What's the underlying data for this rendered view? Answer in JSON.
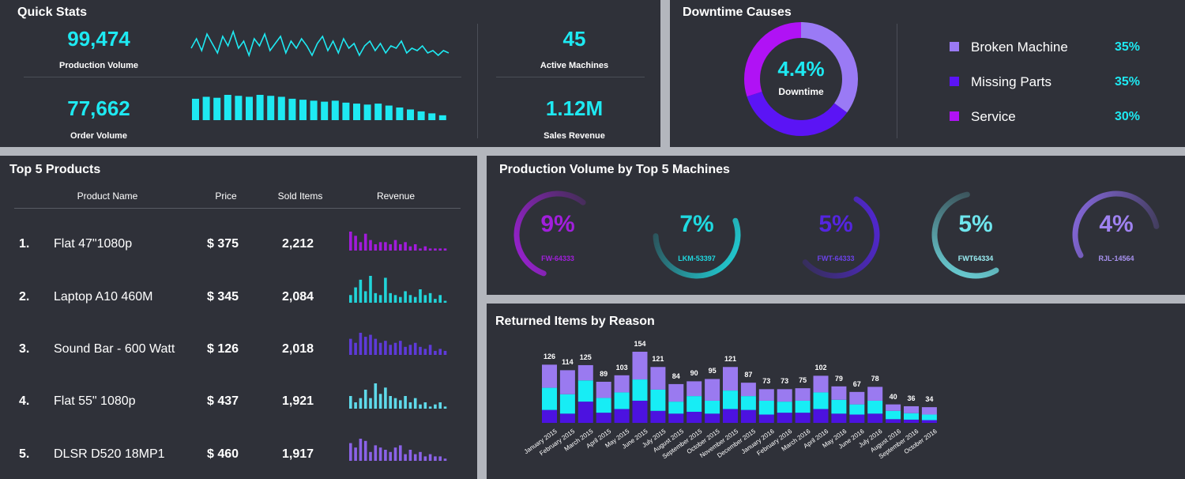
{
  "quick_stats": {
    "title": "Quick Stats",
    "production_volume": {
      "value": "99,474",
      "label": "Production Volume"
    },
    "order_volume": {
      "value": "77,662",
      "label": "Order Volume"
    },
    "active_machines": {
      "value": "45",
      "label": "Active Machines"
    },
    "sales_revenue": {
      "value": "1.12M",
      "label": "Sales Revenue"
    },
    "sparkline": [
      5,
      9,
      4,
      11,
      7,
      3,
      10,
      6,
      12,
      5,
      8,
      2,
      9,
      6,
      11,
      4,
      7,
      10,
      3,
      8,
      5,
      9,
      6,
      2,
      7,
      10,
      4,
      8,
      3,
      9,
      5,
      7,
      2,
      6,
      8,
      4,
      7,
      3,
      6,
      5,
      8,
      3,
      5,
      4,
      6,
      3,
      4,
      2,
      4,
      3
    ],
    "order_bars": [
      22,
      24,
      23,
      26,
      25,
      24,
      26,
      25,
      24,
      22,
      21,
      20,
      19,
      20,
      18,
      17,
      16,
      17,
      15,
      13,
      11,
      9,
      7,
      5
    ]
  },
  "downtime": {
    "title": "Downtime Causes",
    "center_value": "4.4%",
    "center_label": "Downtime",
    "items": [
      {
        "label": "Broken Machine",
        "pct": "35%",
        "value": 35,
        "color": "#9a7af5"
      },
      {
        "label": "Missing Parts",
        "pct": "35%",
        "value": 35,
        "color": "#5b14f5"
      },
      {
        "label": "Service",
        "pct": "30%",
        "value": 30,
        "color": "#b012f5"
      }
    ]
  },
  "products": {
    "title": "Top 5 Products",
    "headers": {
      "name": "Product Name",
      "price": "Price",
      "sold": "Sold Items",
      "revenue": "Revenue"
    },
    "rows": [
      {
        "rank": "1.",
        "name": "Flat 47\"1080p",
        "price": "$ 375",
        "sold": "2,212",
        "color": "#a21bdc",
        "spark": [
          9,
          7,
          4,
          8,
          5,
          3,
          4,
          4,
          3,
          5,
          3,
          4,
          2,
          3,
          1,
          2,
          1,
          1,
          1,
          1
        ]
      },
      {
        "rank": "2.",
        "name": "Laptop A10 460M",
        "price": "$ 345",
        "sold": "2,084",
        "color": "#21d4d9",
        "spark": [
          4,
          8,
          12,
          6,
          14,
          5,
          4,
          13,
          5,
          4,
          3,
          6,
          4,
          3,
          7,
          4,
          5,
          2,
          4,
          1
        ]
      },
      {
        "rank": "3.",
        "name": "Sound Bar - 600 Watt",
        "price": "$ 126",
        "sold": "2,018",
        "color": "#5e3ad9",
        "spark": [
          8,
          6,
          11,
          9,
          10,
          8,
          6,
          7,
          5,
          6,
          7,
          4,
          5,
          6,
          4,
          3,
          5,
          2,
          3,
          2
        ]
      },
      {
        "rank": "4.",
        "name": "Flat 55\" 1080p",
        "price": "$ 437",
        "sold": "1,921",
        "color": "#5fdaea",
        "spark": [
          6,
          3,
          5,
          9,
          5,
          12,
          7,
          10,
          6,
          5,
          4,
          6,
          3,
          5,
          2,
          3,
          1,
          2,
          3,
          1
        ]
      },
      {
        "rank": "5.",
        "name": "DLSR D520 18MP1",
        "price": "$ 460",
        "sold": "1,917",
        "color": "#8b62e8",
        "spark": [
          8,
          6,
          10,
          9,
          4,
          7,
          6,
          5,
          4,
          6,
          7,
          3,
          5,
          3,
          4,
          2,
          3,
          2,
          2,
          1
        ]
      }
    ]
  },
  "machines": {
    "title": "Production Volume by Top 5 Machines",
    "items": [
      {
        "pct": "9%",
        "value": 9,
        "name": "FW-64333",
        "color": "#a11fdc",
        "name_color": "#a11fdc"
      },
      {
        "pct": "7%",
        "value": 7,
        "name": "LKM-53397",
        "color": "#1fd9e0",
        "name_color": "#1fd9e0"
      },
      {
        "pct": "5%",
        "value": 5,
        "name": "FWT-64333",
        "color": "#5425e0",
        "name_color": "#6b42e8"
      },
      {
        "pct": "5%",
        "value": 5,
        "name": "FWT64334",
        "color": "#6fdde3",
        "name_color": "#9bf0f5"
      },
      {
        "pct": "4%",
        "value": 4,
        "name": "RJL-14564",
        "color": "#8c6ce8",
        "name_color": "#a892f0"
      }
    ]
  },
  "returns": {
    "title": "Returned Items by Reason",
    "chart_data": {
      "type": "bar",
      "stacked": true,
      "categories": [
        "January 2015",
        "February 2015",
        "March 2015",
        "April 2015",
        "May 2015",
        "June 2015",
        "July 2015",
        "August 2015",
        "September 2015",
        "October 2015",
        "November 2015",
        "December 2015",
        "January 2016",
        "February 2016",
        "March 2016",
        "April 2016",
        "May 2016",
        "June 2016",
        "July 2016",
        "August 2016",
        "September 2016",
        "October 2016"
      ],
      "totals": [
        126,
        114,
        125,
        89,
        103,
        154,
        121,
        84,
        90,
        95,
        121,
        87,
        73,
        73,
        75,
        102,
        79,
        67,
        78,
        40,
        36,
        34
      ],
      "series": [
        {
          "color": "#4c12e0",
          "values": [
            28,
            20,
            46,
            22,
            30,
            48,
            26,
            20,
            24,
            20,
            30,
            28,
            18,
            22,
            22,
            30,
            20,
            18,
            20,
            8,
            7,
            6
          ]
        },
        {
          "color": "#17edf5",
          "values": [
            48,
            42,
            46,
            32,
            36,
            46,
            46,
            26,
            34,
            28,
            40,
            30,
            30,
            24,
            26,
            36,
            30,
            22,
            28,
            18,
            14,
            12
          ]
        },
        {
          "color": "#9a7af0",
          "values": [
            50,
            52,
            33,
            35,
            37,
            60,
            49,
            38,
            32,
            47,
            51,
            29,
            25,
            27,
            27,
            36,
            29,
            27,
            30,
            14,
            15,
            16
          ]
        }
      ]
    }
  }
}
